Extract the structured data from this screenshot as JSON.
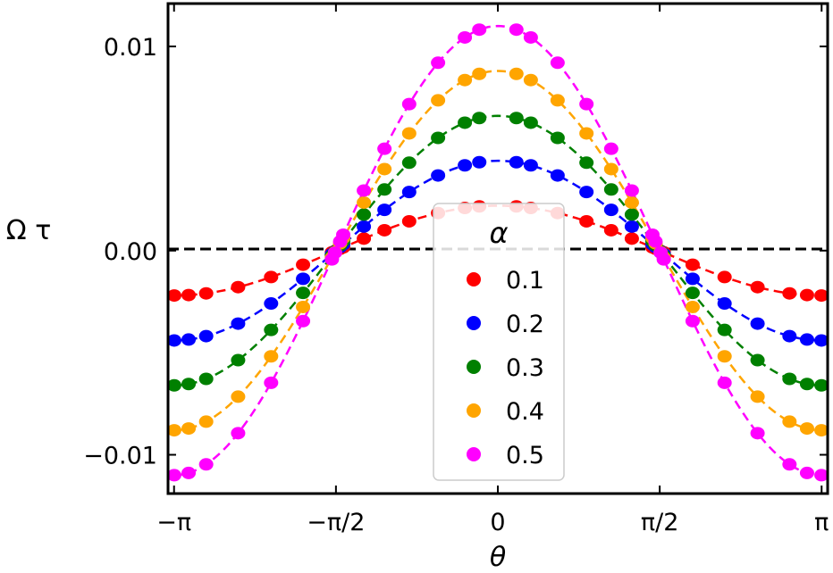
{
  "chart_data": {
    "type": "scatter",
    "xlabel": "θ",
    "ylabel": "Ω τ",
    "xlim": [
      -3.2,
      3.2
    ],
    "ylim": [
      -0.0119,
      0.0121
    ],
    "x_ticks": [
      {
        "value": -3.14159,
        "label": "−π"
      },
      {
        "value": -1.5708,
        "label": "−π/2"
      },
      {
        "value": 0,
        "label": "0"
      },
      {
        "value": 1.5708,
        "label": "π/2"
      },
      {
        "value": 3.14159,
        "label": "π"
      }
    ],
    "y_ticks": [
      {
        "value": 0.01,
        "label": "0.01"
      },
      {
        "value": 0.0,
        "label": "0.00"
      },
      {
        "value": -0.01,
        "label": "−0.01"
      }
    ],
    "zero_line": true,
    "grid": false,
    "legend": {
      "title": "α",
      "placement": "center-bottom"
    },
    "x_samples": [
      -3.14,
      -3.0,
      -2.83,
      -2.52,
      -2.2,
      -1.89,
      -1.61,
      -1.58,
      -1.53,
      -1.5,
      -1.3,
      -1.1,
      -0.86,
      -0.58,
      -0.32,
      -0.18,
      0.18,
      0.32,
      0.58,
      0.86,
      1.1,
      1.3,
      1.5,
      1.53,
      1.58,
      1.61,
      1.89,
      2.2,
      2.52,
      2.83,
      3.0,
      3.14
    ],
    "series": [
      {
        "name": "0.1",
        "amplitude": 0.0022,
        "color": "#ff0000"
      },
      {
        "name": "0.2",
        "amplitude": 0.0044,
        "color": "#0000ff"
      },
      {
        "name": "0.3",
        "amplitude": 0.0066,
        "color": "#008000"
      },
      {
        "name": "0.4",
        "amplitude": 0.0088,
        "color": "#ffa500"
      },
      {
        "name": "0.5",
        "amplitude": 0.011,
        "color": "#ff00ff"
      }
    ]
  }
}
